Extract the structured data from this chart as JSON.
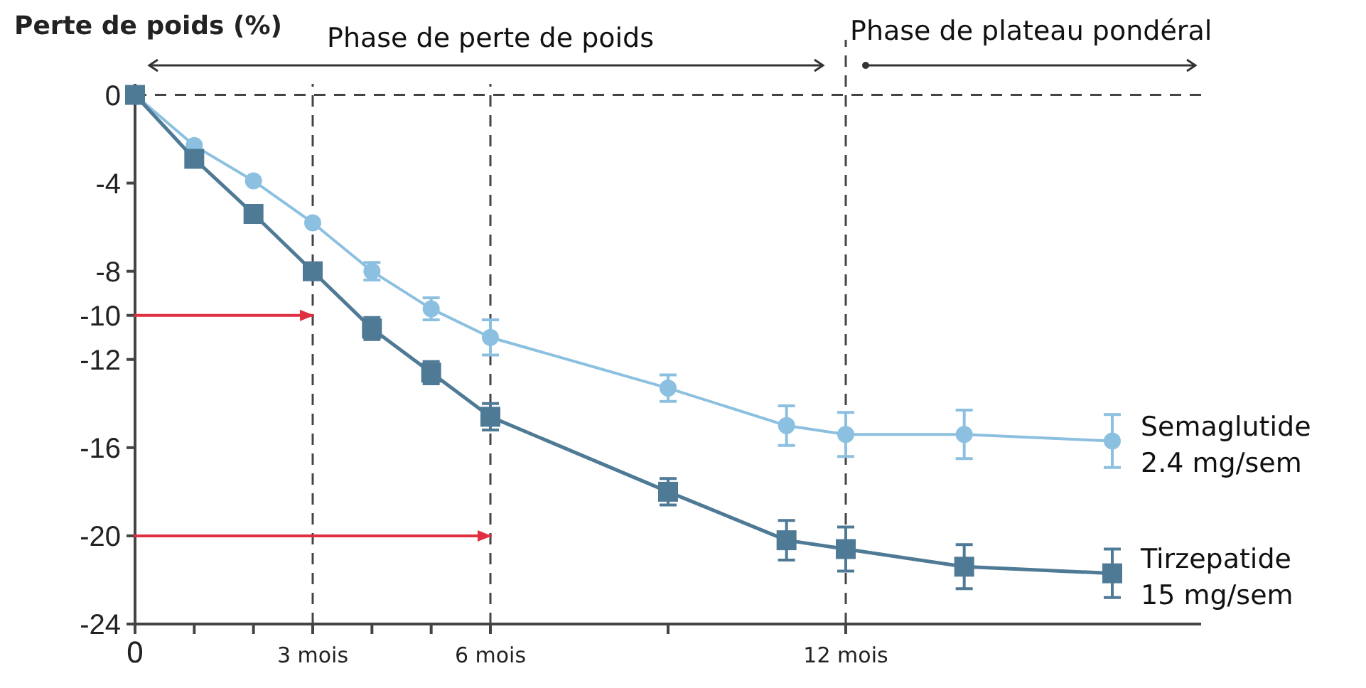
{
  "chart_data": {
    "type": "line",
    "ylabel": "Perte de poids (%)",
    "annotations": [
      "Phase de perte de poids",
      "Phase de plateau pondéral"
    ],
    "xlim": [
      0,
      18
    ],
    "ylim": [
      -24,
      0.5
    ],
    "xticks": [
      0,
      {
        "value": 1,
        "label": null
      },
      {
        "value": 2,
        "label": null
      },
      {
        "value": 3,
        "label": "3 mois"
      },
      {
        "value": 4,
        "label": null
      },
      {
        "value": 5,
        "label": null
      },
      {
        "value": 6,
        "label": "6 mois"
      },
      {
        "value": 9,
        "label": null
      },
      {
        "value": 12,
        "label": "12 mois"
      }
    ],
    "yticks": [
      0,
      -4,
      -8,
      -10,
      -12,
      -16,
      -20,
      -24
    ],
    "ref_lines": [
      {
        "axis": "y",
        "value": 0,
        "line_style": "dashed",
        "color": "#444444"
      },
      {
        "axis": "x",
        "value": 3,
        "line_style": "dashed",
        "color": "#444444"
      },
      {
        "axis": "x",
        "value": 6,
        "line_style": "dashed",
        "color": "#444444"
      },
      {
        "axis": "x",
        "value": 12,
        "line_style": "dashed",
        "color": "#444444"
      }
    ],
    "series": [
      {
        "name": "Semaglutide 2.4 mg/sem",
        "color": "#8cc0e0",
        "marker": "circle",
        "x": [
          0,
          1,
          2,
          3,
          4,
          5,
          6,
          9,
          11,
          12,
          14,
          16.5
        ],
        "values": [
          0,
          -2.3,
          -3.9,
          -5.8,
          -8.0,
          -9.7,
          -11.0,
          -13.3,
          -15.0,
          -15.4,
          -15.4,
          -15.7
        ],
        "errors": [
          null,
          null,
          null,
          null,
          0.4,
          0.5,
          0.8,
          0.6,
          0.9,
          1.0,
          1.1,
          1.2
        ]
      },
      {
        "name": "Tirzepatide 15 mg/sem",
        "color": "#4f7a96",
        "marker": "square",
        "x": [
          0,
          1,
          2,
          3,
          4,
          5,
          6,
          9,
          11,
          12,
          14,
          16.5
        ],
        "values": [
          0,
          -2.9,
          -5.4,
          -8.0,
          -10.6,
          -12.6,
          -14.6,
          -18.0,
          -20.2,
          -20.6,
          -21.4,
          -21.7
        ],
        "errors": [
          null,
          null,
          null,
          null,
          0.5,
          0.5,
          0.6,
          0.6,
          0.9,
          1.0,
          1.0,
          1.1
        ]
      },
      {
        "color": "#e03040",
        "marker": "none",
        "x": [
          0,
          3
        ],
        "values": [
          -10,
          -10
        ]
      },
      {
        "color": "#e03040",
        "marker": "none",
        "x": [
          0,
          6
        ],
        "values": [
          -20,
          -20
        ]
      }
    ]
  }
}
